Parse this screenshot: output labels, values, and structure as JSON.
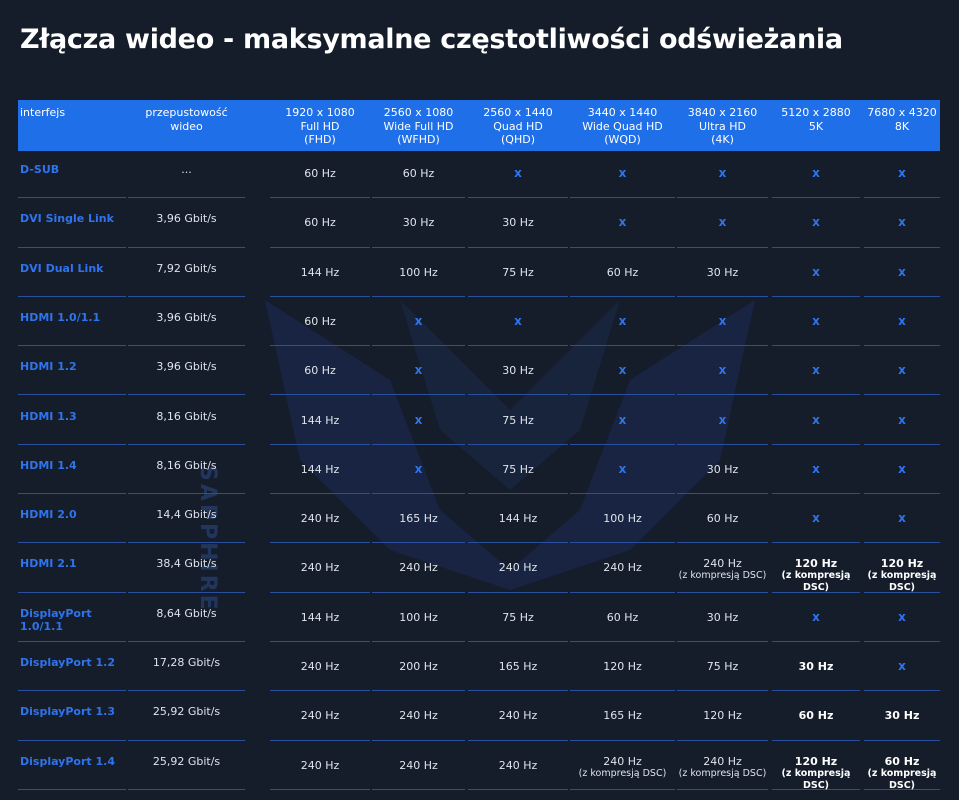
{
  "title": "Złącza wideo - maksymalne częstotliwości odświeżania",
  "watermark": "SAPPHIRE",
  "table": {
    "header": [
      [
        "interfejs"
      ],
      [
        "przepustowość",
        "wideo"
      ],
      [
        "1920 x 1080",
        "Full HD",
        "(FHD)"
      ],
      [
        "2560 x 1080",
        "Wide Full HD",
        "(WFHD)"
      ],
      [
        "2560 x 1440",
        "Quad HD",
        "(QHD)"
      ],
      [
        "3440 x 1440",
        "Wide Quad HD",
        "(WQD)"
      ],
      [
        "3840 x 2160",
        "Ultra HD",
        "(4K)"
      ],
      [
        "5120 x 2880",
        "5K"
      ],
      [
        "7680 x 4320",
        "8K"
      ]
    ],
    "rows": [
      [
        "D-SUB",
        "...",
        "60 Hz",
        "60 Hz",
        {
          "text": "x",
          "color": "#2f74ec"
        },
        {
          "text": "x",
          "color": "#2f74ec"
        },
        {
          "text": "x",
          "color": "#2f74ec"
        },
        {
          "text": "x",
          "color": "#2f74ec"
        },
        {
          "text": "x",
          "color": "#2f74ec"
        }
      ],
      [
        "DVI Single Link",
        "3,96 Gbit/s",
        "60 Hz",
        "30 Hz",
        "30 Hz",
        {
          "text": "x",
          "color": "#2f74ec"
        },
        {
          "text": "x",
          "color": "#2f74ec"
        },
        {
          "text": "x",
          "color": "#2f74ec"
        },
        {
          "text": "x",
          "color": "#2f74ec"
        }
      ],
      [
        "DVI Dual Link",
        "7,92 Gbit/s",
        "144 Hz",
        "100 Hz",
        "75 Hz",
        "60 Hz",
        "30 Hz",
        {
          "text": "x",
          "color": "#2f74ec"
        },
        {
          "text": "x",
          "color": "#2f74ec"
        }
      ],
      [
        "HDMI 1.0/1.1",
        "3,96 Gbit/s",
        "60 Hz",
        {
          "text": "x",
          "color": "#2f74ec"
        },
        {
          "text": "x",
          "color": "#2f74ec"
        },
        {
          "text": "x",
          "color": "#2f74ec"
        },
        {
          "text": "x",
          "color": "#2f74ec"
        },
        {
          "text": "x",
          "color": "#2f74ec"
        },
        {
          "text": "x",
          "color": "#2f74ec"
        }
      ],
      [
        "HDMI 1.2",
        "3,96 Gbit/s",
        "60 Hz",
        {
          "text": "x",
          "color": "#2f74ec"
        },
        "30 Hz",
        {
          "text": "x",
          "color": "#2f74ec"
        },
        {
          "text": "x",
          "color": "#2f74ec"
        },
        {
          "text": "x",
          "color": "#2f74ec"
        },
        {
          "text": "x",
          "color": "#2f74ec"
        }
      ],
      [
        "HDMI 1.3",
        "8,16 Gbit/s",
        "144 Hz",
        {
          "text": "x",
          "color": "#2f74ec"
        },
        "75 Hz",
        {
          "text": "x",
          "color": "#2f74ec"
        },
        {
          "text": "x",
          "color": "#2f74ec"
        },
        {
          "text": "x",
          "color": "#2f74ec"
        },
        {
          "text": "x",
          "color": "#2f74ec"
        }
      ],
      [
        "HDMI 1.4",
        "8,16 Gbit/s",
        "144 Hz",
        {
          "text": "x",
          "color": "#2f74ec"
        },
        "75 Hz",
        {
          "text": "x",
          "color": "#2f74ec"
        },
        "30 Hz",
        {
          "text": "x",
          "color": "#2f74ec"
        },
        {
          "text": "x",
          "color": "#2f74ec"
        }
      ],
      [
        "HDMI 2.0",
        "14,4 Gbit/s",
        "240 Hz",
        "165 Hz",
        "144 Hz",
        "100 Hz",
        "60 Hz",
        {
          "text": "x",
          "color": "#2f74ec"
        },
        {
          "text": "x",
          "color": "#2f74ec"
        }
      ],
      [
        "HDMI 2.1",
        "38,4 Gbit/s",
        "240 Hz",
        "240 Hz",
        "240 Hz",
        "240 Hz",
        {
          "text": "240 Hz",
          "note": "(z kompresją DSC)"
        },
        {
          "text": "120 Hz",
          "note": "(z kompresją DSC)",
          "bold": true
        },
        {
          "text": "120 Hz",
          "note": "(z kompresją DSC)",
          "bold": true
        }
      ],
      [
        "DisplayPort 1.0/1.1",
        "8,64 Gbit/s",
        "144 Hz",
        "100 Hz",
        "75 Hz",
        "60 Hz",
        "30 Hz",
        {
          "text": "x",
          "color": "#2f74ec"
        },
        {
          "text": "x",
          "color": "#2f74ec"
        }
      ],
      [
        "DisplayPort 1.2",
        "17,28 Gbit/s",
        "240 Hz",
        "200 Hz",
        "165 Hz",
        "120 Hz",
        "75 Hz",
        {
          "text": "30 Hz",
          "bold": true
        },
        {
          "text": "x",
          "color": "#2f74ec"
        }
      ],
      [
        "DisplayPort 1.3",
        "25,92 Gbit/s",
        "240 Hz",
        "240 Hz",
        "240 Hz",
        "165 Hz",
        "120 Hz",
        {
          "text": "60 Hz",
          "bold": true
        },
        {
          "text": "30 Hz",
          "bold": true
        }
      ],
      [
        "DisplayPort 1.4",
        "25,92 Gbit/s",
        "240 Hz",
        "240 Hz",
        "240 Hz",
        {
          "text": "240 Hz",
          "note": "(z kompresją DSC)"
        },
        {
          "text": "240 Hz",
          "note": "(z kompresją DSC)"
        },
        {
          "text": "120 Hz",
          "note": "(z kompresją DSC)",
          "bold": true
        },
        {
          "text": "60 Hz",
          "note": "(z kompresją DSC)",
          "bold": true
        }
      ]
    ]
  }
}
